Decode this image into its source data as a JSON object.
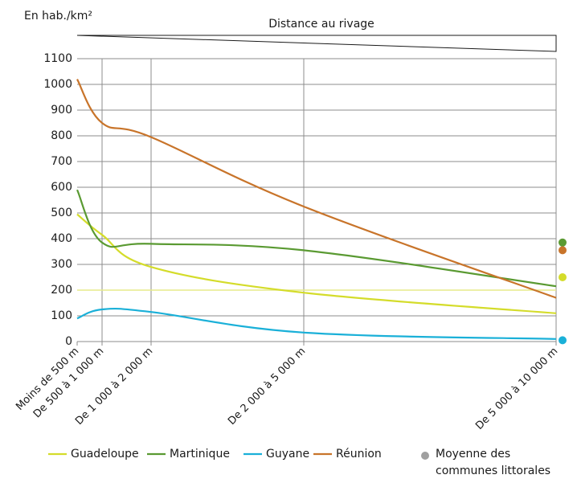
{
  "chart_data": {
    "type": "line",
    "y_axis_label": "En hab./km²",
    "x_axis_label": "Distance au rivage",
    "categories": [
      "Moins de 500 m",
      "De 500 à 1 000 m",
      "De 1 000 à 2 000 m",
      "De 2 000 à 5 000 m",
      "De 5 000 à 10 000 m"
    ],
    "ylim": [
      0,
      1100
    ],
    "yticks": [
      0,
      100,
      200,
      300,
      400,
      500,
      600,
      700,
      800,
      900,
      1000,
      1100
    ],
    "grid": true,
    "highlight_y": 200,
    "series": [
      {
        "name": "Guadeloupe",
        "color": "#d4dc2a",
        "values": [
          495,
          415,
          290,
          190,
          110
        ],
        "average": 250
      },
      {
        "name": "Martinique",
        "color": "#5a9a32",
        "values": [
          590,
          385,
          380,
          355,
          215
        ],
        "average": 385
      },
      {
        "name": "Guyane",
        "color": "#1ab0d8",
        "values": [
          90,
          125,
          115,
          35,
          10
        ],
        "average": 5
      },
      {
        "name": "Réunion",
        "color": "#c8742a",
        "values": [
          1020,
          850,
          795,
          525,
          170
        ],
        "average": 355
      }
    ],
    "average_label": [
      "Moyenne des",
      "communes littorales"
    ],
    "average_legend_color": "#a0a0a0"
  }
}
